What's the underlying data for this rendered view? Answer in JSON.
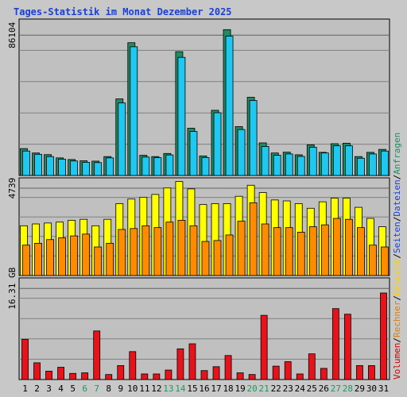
{
  "chart_data": {
    "type": "bar",
    "title": "Tages-Statistik im Monat Dezember 2025",
    "categories": [
      "1",
      "2",
      "3",
      "4",
      "5",
      "6",
      "7",
      "8",
      "9",
      "10",
      "11",
      "12",
      "13",
      "14",
      "15",
      "16",
      "17",
      "18",
      "19",
      "20",
      "21",
      "22",
      "23",
      "24",
      "25",
      "26",
      "27",
      "28",
      "29",
      "30",
      "31"
    ],
    "weekend_days": [
      "6",
      "7",
      "13",
      "14",
      "20",
      "21",
      "27",
      "28"
    ],
    "panels": [
      {
        "id": "top",
        "ytick_label": "86104",
        "ytick_value": 86104,
        "ymax": 96000,
        "series": [
          {
            "name": "Anfragen",
            "color": "#1f8c64",
            "values": [
              16500,
              13800,
              12800,
              10800,
              9800,
              9000,
              8800,
              11600,
              47000,
              81500,
              12400,
              11600,
              13500,
              76000,
              29000,
              12000,
              40000,
              89500,
              30000,
              48000,
              20000,
              13800,
              14300,
              12700,
              18800,
              14200,
              19500,
              19800,
              11600,
              14200,
              16000
            ]
          },
          {
            "name": "Dateien",
            "color": "#1ec8f0",
            "values": [
              15000,
              13000,
              11600,
              10000,
              8900,
              8100,
              7900,
              10800,
              44500,
              79000,
              11300,
              10900,
              12600,
              72500,
              27000,
              11000,
              38500,
              85500,
              28200,
              46000,
              17800,
              12400,
              13200,
              11700,
              17300,
              13800,
              18200,
              18200,
              10600,
              13200,
              15000
            ]
          }
        ]
      },
      {
        "id": "middle",
        "ytick_label": "4739",
        "ytick_value": 4739,
        "ymax": 5300,
        "series": [
          {
            "name": "Besuche",
            "color": "#ffff00",
            "values": [
              2700,
              2800,
              2850,
              2900,
              3000,
              3050,
              2700,
              3050,
              3900,
              4150,
              4250,
              4400,
              4750,
              5100,
              4700,
              3850,
              3900,
              3900,
              4300,
              4900,
              4500,
              4100,
              4050,
              3900,
              3650,
              4000,
              4200,
              4200,
              3700,
              3100,
              2650
            ]
          },
          {
            "name": "Seiten",
            "color": "#ff8c00",
            "values": [
              1650,
              1750,
              1950,
              2050,
              2150,
              2250,
              1550,
              1750,
              2500,
              2550,
              2700,
              2600,
              2900,
              3000,
              2700,
              1850,
              1900,
              2200,
              2950,
              3950,
              2800,
              2600,
              2600,
              2350,
              2650,
              2750,
              3100,
              3050,
              2600,
              1650,
              1550
            ]
          }
        ]
      },
      {
        "id": "bottom",
        "ytick_label": "16.31 GB",
        "ytick_value": 16.31,
        "ymax": 18.2,
        "series": [
          {
            "name": "Volumen",
            "color": "#e8131a",
            "values": [
              7.2,
              3.0,
              1.5,
              2.2,
              1.1,
              1.2,
              8.7,
              0.9,
              2.5,
              5.0,
              1.0,
              1.0,
              1.7,
              5.5,
              6.4,
              1.6,
              2.3,
              4.3,
              1.2,
              0.9,
              11.5,
              2.4,
              3.2,
              1.0,
              4.6,
              2.0,
              12.7,
              11.7,
              2.5,
              2.5,
              15.5
            ]
          }
        ]
      }
    ],
    "legend": [
      {
        "label": "Volumen",
        "color": "#cc0000"
      },
      {
        "label": "Rechner",
        "color": "#d97f0e"
      },
      {
        "label": "Besuche",
        "color": "#ffd000"
      },
      {
        "label": "Seiten",
        "color": "#1a3fd6"
      },
      {
        "label": "Dateien",
        "color": "#1a3fd6"
      },
      {
        "label": "Anfragen",
        "color": "#1f8c64"
      }
    ],
    "legend_separator": "/",
    "legend_placement": "right-vertical",
    "colors": {
      "background": "#c8c8c8",
      "plot_bg": "#c0c0c0",
      "border": "#000000",
      "gridline": "#808080",
      "title": "#1a3fd6",
      "weekend_tick": "#13a05a"
    }
  }
}
